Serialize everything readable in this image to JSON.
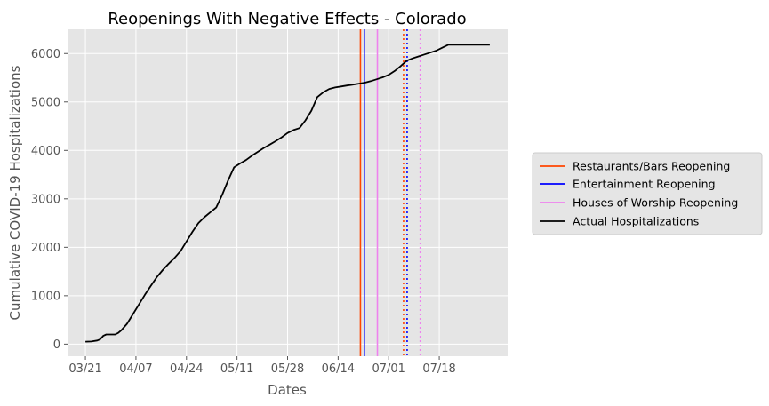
{
  "chart_data": {
    "type": "line",
    "title": "Reopenings With Negative Effects - Colorado",
    "xlabel": "Dates",
    "ylabel": "Cumulative COVID-19 Hospitalizations",
    "x_tick_labels": [
      "03/21",
      "04/07",
      "04/24",
      "05/11",
      "05/28",
      "06/14",
      "07/01",
      "07/18"
    ],
    "x_tick_days": [
      0,
      17,
      34,
      51,
      68,
      85,
      102,
      119
    ],
    "xlim": [
      -6,
      142
    ],
    "ylim": [
      -250,
      6500
    ],
    "y_ticks": [
      0,
      1000,
      2000,
      3000,
      4000,
      5000,
      6000
    ],
    "grid": true,
    "legend_position": "right-outside",
    "series": [
      {
        "name": "Actual Hospitalizations",
        "color": "#000000",
        "x": [
          0,
          2,
          4,
          5,
          6,
          7,
          8,
          9,
          10,
          11,
          12,
          14,
          16,
          18,
          20,
          22,
          24,
          26,
          28,
          30,
          32,
          34,
          36,
          38,
          40,
          42,
          44,
          46,
          48,
          50,
          52,
          54,
          56,
          58,
          60,
          62,
          64,
          66,
          68,
          70,
          72,
          74,
          76,
          78,
          80,
          82,
          84,
          86,
          88,
          90,
          92,
          94,
          96,
          98,
          100,
          102,
          104,
          106,
          108,
          110,
          112,
          114,
          116,
          118,
          120,
          122,
          124,
          126,
          128,
          130,
          132,
          134,
          136
        ],
        "y": [
          50,
          55,
          75,
          100,
          170,
          200,
          200,
          200,
          200,
          230,
          280,
          420,
          620,
          820,
          1020,
          1200,
          1380,
          1530,
          1660,
          1780,
          1920,
          2120,
          2320,
          2500,
          2620,
          2720,
          2820,
          3080,
          3380,
          3650,
          3730,
          3800,
          3890,
          3970,
          4050,
          4120,
          4190,
          4270,
          4360,
          4420,
          4460,
          4620,
          4820,
          5100,
          5200,
          5270,
          5300,
          5320,
          5340,
          5360,
          5380,
          5400,
          5430,
          5470,
          5510,
          5560,
          5640,
          5740,
          5850,
          5900,
          5940,
          5980,
          6020,
          6060,
          6120,
          6180,
          6180,
          6180,
          6180,
          6180,
          6180,
          6180,
          6180
        ]
      }
    ],
    "reference_lines": [
      {
        "name": "Restaurants/Bars Reopening",
        "x": 92.5,
        "color": "#ff4500",
        "style": "solid"
      },
      {
        "name": "Entertainment Reopening",
        "x": 93.8,
        "color": "#0000ff",
        "style": "solid"
      },
      {
        "name": "Houses of Worship Reopening",
        "x": 98.2,
        "color": "#ee82ee",
        "style": "solid"
      },
      {
        "name": "",
        "x": 107.0,
        "color": "#ff4500",
        "style": "dotted"
      },
      {
        "name": "",
        "x": 108.2,
        "color": "#0000ff",
        "style": "dotted"
      },
      {
        "name": "",
        "x": 112.6,
        "color": "#ee82ee",
        "style": "dotted"
      }
    ],
    "legend": [
      {
        "label": "Restaurants/Bars Reopening",
        "color": "#ff4500"
      },
      {
        "label": "Entertainment Reopening",
        "color": "#0000ff"
      },
      {
        "label": "Houses of Worship Reopening",
        "color": "#ee82ee"
      },
      {
        "label": "Actual Hospitalizations",
        "color": "#000000"
      }
    ]
  }
}
